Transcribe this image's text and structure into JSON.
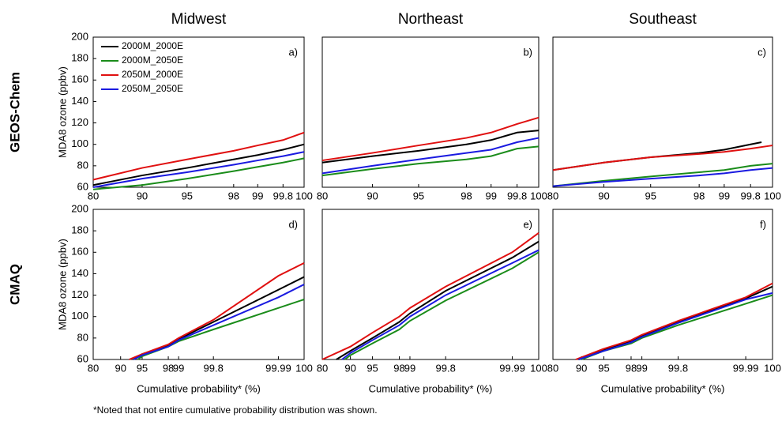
{
  "row_labels": [
    "GEOS-Chem",
    "CMAQ"
  ],
  "footnote": "*Noted that not entire cumulative probability distribution was shown.",
  "chart_data": [
    {
      "type": "line",
      "title": "Midwest",
      "ylabel": "MDA8 ozone (ppbv)",
      "annotation": "a)",
      "legend": "upper left",
      "xlim": [
        80,
        100
      ],
      "ylim": [
        60,
        200
      ],
      "xticks": [
        80,
        90,
        95,
        98,
        99,
        99.8,
        100
      ],
      "yticks": [
        60,
        80,
        100,
        120,
        140,
        160,
        180,
        200
      ],
      "series": [
        {
          "name": "2000M_2000E",
          "color": "#000000",
          "x": [
            80,
            90,
            95,
            98,
            99,
            99.8,
            100
          ],
          "values": [
            62,
            71,
            78,
            86,
            90,
            95,
            100
          ]
        },
        {
          "name": "2000M_2050E",
          "color": "#1a8c1a",
          "x": [
            80,
            90,
            95,
            98,
            99,
            99.8,
            100
          ],
          "values": [
            58,
            62,
            68,
            75,
            79,
            83,
            87
          ]
        },
        {
          "name": "2050M_2000E",
          "color": "#e01010",
          "x": [
            80,
            90,
            95,
            98,
            99,
            99.8,
            100
          ],
          "values": [
            67,
            78,
            86,
            94,
            99,
            104,
            111
          ]
        },
        {
          "name": "2050M_2050E",
          "color": "#1a1ae0",
          "x": [
            80,
            90,
            95,
            98,
            99,
            99.8,
            100
          ],
          "values": [
            60,
            68,
            74,
            81,
            85,
            89,
            93
          ]
        }
      ]
    },
    {
      "type": "line",
      "title": "Northeast",
      "annotation": "b)",
      "xlim": [
        80,
        100
      ],
      "ylim": [
        60,
        200
      ],
      "xticks": [
        80,
        90,
        95,
        98,
        99,
        99.8,
        100
      ],
      "series": [
        {
          "color": "#000000",
          "x": [
            80,
            90,
            95,
            98,
            99,
            99.8,
            100
          ],
          "values": [
            83,
            89,
            94,
            100,
            104,
            111,
            113
          ]
        },
        {
          "color": "#1a8c1a",
          "x": [
            80,
            90,
            95,
            98,
            99,
            99.8,
            100
          ],
          "values": [
            71,
            77,
            82,
            86,
            89,
            96,
            98
          ]
        },
        {
          "color": "#e01010",
          "x": [
            80,
            90,
            95,
            98,
            99,
            99.8,
            100
          ],
          "values": [
            85,
            92,
            99,
            106,
            111,
            119,
            125
          ]
        },
        {
          "color": "#1a1ae0",
          "x": [
            80,
            90,
            95,
            98,
            99,
            99.8,
            100
          ],
          "values": [
            73,
            80,
            86,
            92,
            95,
            102,
            106
          ]
        }
      ]
    },
    {
      "type": "line",
      "title": "Southeast",
      "annotation": "c)",
      "xlim": [
        80,
        100
      ],
      "ylim": [
        60,
        200
      ],
      "xticks": [
        80,
        90,
        95,
        98,
        99,
        99.8,
        100
      ],
      "series": [
        {
          "color": "#000000",
          "x": [
            80,
            90,
            95,
            98,
            99,
            99.8,
            99.9
          ],
          "values": [
            76,
            83,
            88,
            92,
            95,
            100,
            102
          ]
        },
        {
          "color": "#1a8c1a",
          "x": [
            80,
            90,
            95,
            98,
            99,
            99.8,
            100
          ],
          "values": [
            61,
            66,
            70,
            74,
            76,
            80,
            82
          ]
        },
        {
          "color": "#e01010",
          "x": [
            80,
            90,
            95,
            98,
            99,
            99.8,
            100
          ],
          "values": [
            76,
            83,
            88,
            91,
            93,
            96,
            99
          ]
        },
        {
          "color": "#1a1ae0",
          "x": [
            80,
            90,
            95,
            98,
            99,
            99.8,
            100
          ],
          "values": [
            61,
            65,
            68,
            71,
            73,
            76,
            78
          ]
        }
      ]
    },
    {
      "type": "line",
      "ylabel": "MDA8 ozone (ppbv)",
      "xlabel": "Cumulative probability* (%)",
      "annotation": "d)",
      "xlim": [
        80,
        100
      ],
      "ylim": [
        60,
        200
      ],
      "xticks": [
        80,
        90,
        95,
        98,
        99,
        99.8,
        99.99,
        100
      ],
      "yticks": [
        60,
        80,
        100,
        120,
        140,
        160,
        180,
        200
      ],
      "series": [
        {
          "color": "#000000",
          "x": [
            93,
            95,
            98,
            99,
            99.8,
            99.99,
            100
          ],
          "values": [
            60,
            65,
            73,
            79,
            95,
            125,
            137
          ]
        },
        {
          "color": "#1a8c1a",
          "x": [
            94,
            95,
            98,
            99,
            99.8,
            99.99,
            100
          ],
          "values": [
            60,
            63,
            72,
            77,
            88,
            108,
            116
          ]
        },
        {
          "color": "#e01010",
          "x": [
            92,
            95,
            98,
            99,
            99.8,
            99.99,
            100
          ],
          "values": [
            60,
            65,
            74,
            80,
            97,
            138,
            150
          ]
        },
        {
          "color": "#1a1ae0",
          "x": [
            93,
            95,
            98,
            99,
            99.8,
            99.99,
            100
          ],
          "values": [
            60,
            64,
            72,
            78,
            92,
            118,
            130
          ]
        }
      ]
    },
    {
      "type": "line",
      "xlabel": "Cumulative probability* (%)",
      "annotation": "e)",
      "xlim": [
        80,
        100
      ],
      "ylim": [
        60,
        200
      ],
      "xticks": [
        80,
        90,
        95,
        98,
        99,
        99.8,
        99.99,
        100
      ],
      "series": [
        {
          "color": "#000000",
          "x": [
            85,
            90,
            95,
            98,
            99,
            99.8,
            99.99,
            100
          ],
          "values": [
            60,
            68,
            80,
            95,
            103,
            124,
            155,
            170
          ]
        },
        {
          "color": "#1a8c1a",
          "x": [
            88,
            90,
            95,
            98,
            99,
            99.8,
            99.99,
            100
          ],
          "values": [
            60,
            64,
            75,
            88,
            96,
            115,
            145,
            160
          ]
        },
        {
          "color": "#e01010",
          "x": [
            80,
            90,
            95,
            98,
            99,
            99.8,
            99.99,
            100
          ],
          "values": [
            60,
            72,
            85,
            100,
            108,
            128,
            160,
            178
          ]
        },
        {
          "color": "#1a1ae0",
          "x": [
            87,
            90,
            95,
            98,
            99,
            99.8,
            99.99,
            100
          ],
          "values": [
            60,
            66,
            78,
            92,
            100,
            120,
            150,
            162
          ]
        }
      ]
    },
    {
      "type": "line",
      "xlabel": "Cumulative probability* (%)",
      "annotation": "f)",
      "xlim": [
        80,
        100
      ],
      "ylim": [
        60,
        200
      ],
      "xticks": [
        80,
        90,
        95,
        98,
        99,
        99.8,
        99.99,
        100
      ],
      "series": [
        {
          "color": "#000000",
          "x": [
            89,
            95,
            98,
            99,
            99.8,
            99.99,
            100
          ],
          "values": [
            60,
            69,
            77,
            82,
            95,
            117,
            128
          ]
        },
        {
          "color": "#1a8c1a",
          "x": [
            90,
            95,
            98,
            99,
            99.8,
            99.99,
            100
          ],
          "values": [
            60,
            68,
            75,
            80,
            92,
            112,
            120
          ]
        },
        {
          "color": "#e01010",
          "x": [
            88,
            95,
            98,
            99,
            99.8,
            99.99,
            100
          ],
          "values": [
            60,
            70,
            78,
            83,
            96,
            118,
            131
          ]
        },
        {
          "color": "#1a1ae0",
          "x": [
            89,
            95,
            98,
            99,
            99.8,
            99.99,
            100
          ],
          "values": [
            60,
            68,
            76,
            81,
            94,
            116,
            122
          ]
        }
      ]
    }
  ]
}
